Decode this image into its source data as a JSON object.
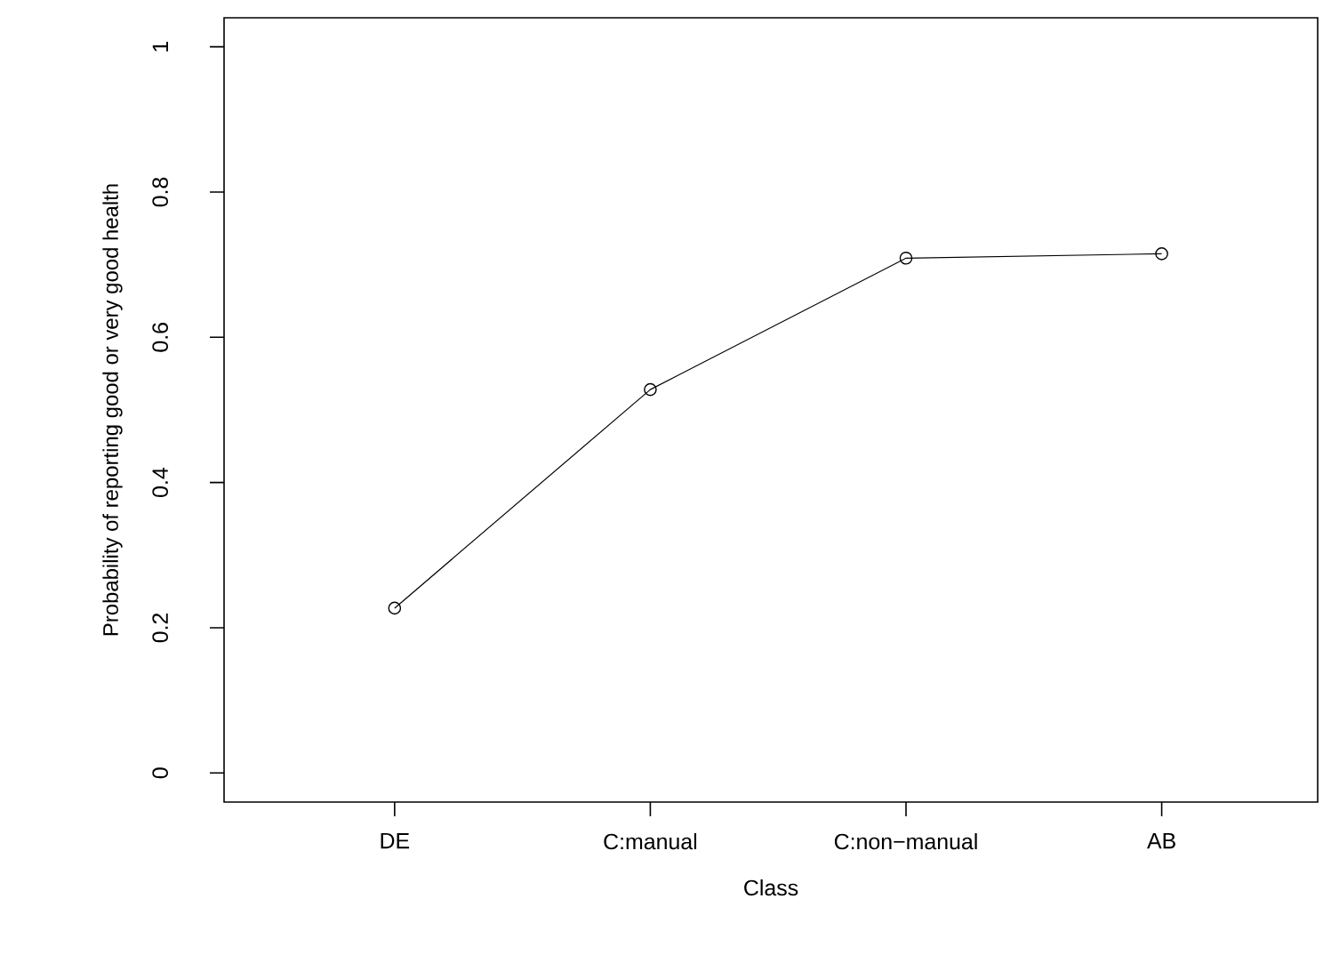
{
  "chart_data": {
    "type": "line",
    "xlabel": "Class",
    "ylabel": "Probability of reporting good or very good health",
    "categories": [
      "DE",
      "C:manual",
      "C:non−manual",
      "AB"
    ],
    "values": [
      0.227,
      0.528,
      0.709,
      0.715
    ],
    "color": "#000000",
    "marker": "circle",
    "line_style": "solid",
    "ylim": [
      -0.04,
      1.04
    ],
    "yticks": [
      0,
      0.2,
      0.4,
      0.6,
      0.8,
      1
    ],
    "grid": false
  }
}
